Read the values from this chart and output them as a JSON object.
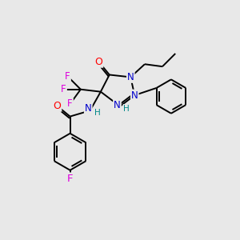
{
  "background_color": "#e8e8e8",
  "bond_color": "#000000",
  "atom_colors": {
    "O": "#ff0000",
    "N": "#0000cc",
    "F": "#dd00dd",
    "C": "#000000",
    "H": "#008888"
  },
  "figsize": [
    3.0,
    3.0
  ],
  "dpi": 100,
  "lw": 1.4,
  "fs": 8.5
}
